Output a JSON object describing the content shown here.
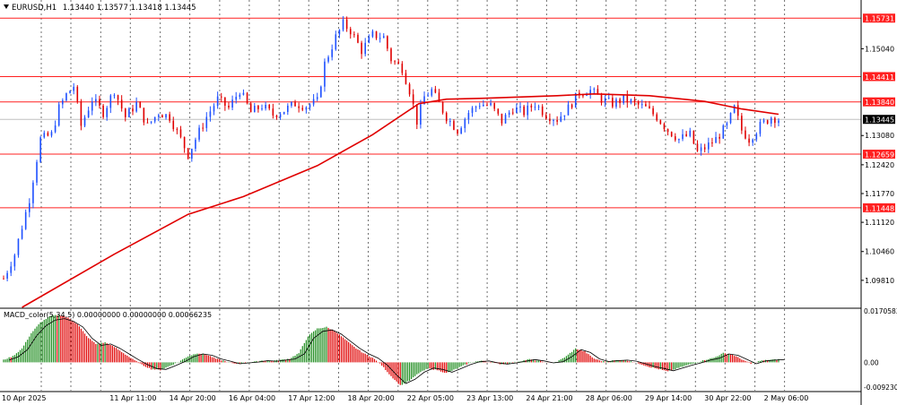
{
  "header": {
    "symbol": "EURUSD,H1",
    "ohlc": "1.13440 1.13577 1.13418 1.13445"
  },
  "indicator": {
    "label": "MACD_color(5,34,5) 0.00000000 0.00000000 0.00066235",
    "axis_labels": [
      "0.0170583",
      "0.00",
      "-0.0092300"
    ]
  },
  "x_axis_labels": [
    "10 Apr 2025",
    "11 Apr 11:00",
    "14 Apr 20:00",
    "16 Apr 04:00",
    "17 Apr 12:00",
    "18 Apr 20:00",
    "22 Apr 05:00",
    "23 Apr 13:00",
    "24 Apr 21:00",
    "28 Apr 06:00",
    "29 Apr 14:00",
    "30 Apr 22:00",
    "2 May 06:00"
  ],
  "colors": {
    "bull": "#1e8c1e",
    "bear": "#e00000",
    "level": "#ff2020",
    "ma": "#e00000",
    "grid": "#707070",
    "current_price_bg": "#000000"
  },
  "chart_data": [
    {
      "type": "candlestick",
      "name_in_header": "EURUSD,H1",
      "timeframe": "H1",
      "ylim": [
        1.092,
        1.161
      ],
      "y_ticks": [
        "1.15731",
        "1.15040",
        "1.14411",
        "1.13840",
        "1.13445",
        "1.13080",
        "1.12659",
        "1.12420",
        "1.11770",
        "1.11448",
        "1.11120",
        "1.10460",
        "1.09810"
      ],
      "horizontal_levels": [
        1.15731,
        1.14411,
        1.1384,
        1.12659,
        1.11448
      ],
      "current_price": 1.13445,
      "close_path": [
        [
          0,
          1.0985
        ],
        [
          6,
          1.104
        ],
        [
          14,
          1.1165
        ],
        [
          20,
          1.13
        ],
        [
          26,
          1.131
        ],
        [
          30,
          1.137
        ],
        [
          34,
          1.14
        ],
        [
          38,
          1.142
        ],
        [
          42,
          1.133
        ],
        [
          48,
          1.139
        ],
        [
          54,
          1.136
        ],
        [
          60,
          1.141
        ],
        [
          66,
          1.135
        ],
        [
          72,
          1.138
        ],
        [
          78,
          1.133
        ],
        [
          84,
          1.136
        ],
        [
          90,
          1.135
        ],
        [
          96,
          1.13
        ],
        [
          100,
          1.1265
        ],
        [
          104,
          1.13
        ],
        [
          110,
          1.135
        ],
        [
          116,
          1.139
        ],
        [
          122,
          1.137
        ],
        [
          128,
          1.141
        ],
        [
          134,
          1.136
        ],
        [
          140,
          1.1375
        ],
        [
          146,
          1.1355
        ],
        [
          152,
          1.1365
        ],
        [
          158,
          1.138
        ],
        [
          164,
          1.1375
        ],
        [
          170,
          1.1385
        ],
        [
          174,
          1.147
        ],
        [
          180,
          1.153
        ],
        [
          184,
          1.156
        ],
        [
          188,
          1.1545
        ],
        [
          194,
          1.15
        ],
        [
          200,
          1.1535
        ],
        [
          206,
          1.153
        ],
        [
          210,
          1.148
        ],
        [
          216,
          1.146
        ],
        [
          220,
          1.141
        ],
        [
          224,
          1.134
        ],
        [
          228,
          1.1395
        ],
        [
          232,
          1.141
        ],
        [
          236,
          1.138
        ],
        [
          240,
          1.135
        ],
        [
          246,
          1.132
        ],
        [
          252,
          1.136
        ],
        [
          258,
          1.138
        ],
        [
          264,
          1.1375
        ],
        [
          270,
          1.134
        ],
        [
          276,
          1.137
        ],
        [
          282,
          1.136
        ],
        [
          288,
          1.138
        ],
        [
          294,
          1.1355
        ],
        [
          300,
          1.1345
        ],
        [
          306,
          1.137
        ],
        [
          312,
          1.1405
        ],
        [
          318,
          1.141
        ],
        [
          324,
          1.139
        ],
        [
          330,
          1.138
        ],
        [
          336,
          1.139
        ],
        [
          342,
          1.138
        ],
        [
          348,
          1.137
        ],
        [
          354,
          1.135
        ],
        [
          360,
          1.132
        ],
        [
          366,
          1.13
        ],
        [
          372,
          1.131
        ],
        [
          376,
          1.127
        ],
        [
          380,
          1.128
        ],
        [
          386,
          1.13
        ],
        [
          392,
          1.133
        ],
        [
          396,
          1.137
        ],
        [
          400,
          1.132
        ],
        [
          404,
          1.13
        ],
        [
          410,
          1.133
        ],
        [
          416,
          1.135
        ],
        [
          420,
          1.1345
        ]
      ],
      "moving_average": [
        [
          10,
          1.092
        ],
        [
          60,
          1.104
        ],
        [
          100,
          1.113
        ],
        [
          130,
          1.117
        ],
        [
          170,
          1.124
        ],
        [
          200,
          1.131
        ],
        [
          225,
          1.138
        ],
        [
          240,
          1.139
        ],
        [
          260,
          1.1392
        ],
        [
          300,
          1.1398
        ],
        [
          320,
          1.1402
        ],
        [
          350,
          1.1398
        ],
        [
          380,
          1.1385
        ],
        [
          400,
          1.1368
        ],
        [
          420,
          1.1356
        ]
      ]
    },
    {
      "type": "histogram",
      "name_in_label": "MACD_color(5,34,5)",
      "ylim": [
        -0.00923,
        0.0170583
      ],
      "values": [
        [
          0,
          0.0008
        ],
        [
          5,
          0.002
        ],
        [
          10,
          0.0045
        ],
        [
          15,
          0.0095
        ],
        [
          20,
          0.013
        ],
        [
          25,
          0.015
        ],
        [
          30,
          0.0155
        ],
        [
          35,
          0.0145
        ],
        [
          40,
          0.0125
        ],
        [
          45,
          0.0085
        ],
        [
          50,
          0.006
        ],
        [
          55,
          0.0065
        ],
        [
          60,
          0.005
        ],
        [
          65,
          0.003
        ],
        [
          70,
          0.001
        ],
        [
          75,
          -0.0008
        ],
        [
          80,
          -0.0022
        ],
        [
          85,
          -0.0025
        ],
        [
          90,
          -0.0012
        ],
        [
          95,
          0.0002
        ],
        [
          100,
          0.002
        ],
        [
          105,
          0.003
        ],
        [
          110,
          0.0025
        ],
        [
          115,
          0.0012
        ],
        [
          120,
          0.0004
        ],
        [
          125,
          -0.0005
        ],
        [
          130,
          -0.0002
        ],
        [
          135,
          0.0001
        ],
        [
          140,
          0.0006
        ],
        [
          145,
          0.0004
        ],
        [
          150,
          0.0008
        ],
        [
          155,
          0.0012
        ],
        [
          160,
          0.003
        ],
        [
          165,
          0.0085
        ],
        [
          170,
          0.011
        ],
        [
          175,
          0.0115
        ],
        [
          180,
          0.01
        ],
        [
          185,
          0.0075
        ],
        [
          190,
          0.005
        ],
        [
          195,
          0.003
        ],
        [
          200,
          0.0015
        ],
        [
          205,
          -0.001
        ],
        [
          210,
          -0.0045
        ],
        [
          215,
          -0.0075
        ],
        [
          220,
          -0.006
        ],
        [
          225,
          -0.0035
        ],
        [
          230,
          -0.002
        ],
        [
          235,
          -0.0025
        ],
        [
          240,
          -0.0035
        ],
        [
          245,
          -0.0022
        ],
        [
          250,
          -0.0008
        ],
        [
          255,
          0.0002
        ],
        [
          260,
          0.0005
        ],
        [
          265,
          -0.0002
        ],
        [
          270,
          -0.0006
        ],
        [
          275,
          -0.0002
        ],
        [
          280,
          0.0004
        ],
        [
          285,
          0.001
        ],
        [
          290,
          0.0005
        ],
        [
          295,
          -0.0002
        ],
        [
          300,
          0.0002
        ],
        [
          305,
          0.002
        ],
        [
          310,
          0.0045
        ],
        [
          315,
          0.0035
        ],
        [
          320,
          0.0012
        ],
        [
          325,
          0.0003
        ],
        [
          330,
          0.0006
        ],
        [
          335,
          0.0008
        ],
        [
          340,
          0.0004
        ],
        [
          345,
          -0.0005
        ],
        [
          350,
          -0.0015
        ],
        [
          355,
          -0.0022
        ],
        [
          360,
          -0.003
        ],
        [
          365,
          -0.002
        ],
        [
          370,
          -0.001
        ],
        [
          375,
          -0.0002
        ],
        [
          380,
          0.0008
        ],
        [
          385,
          0.0015
        ],
        [
          390,
          0.003
        ],
        [
          395,
          0.0025
        ],
        [
          400,
          0.001
        ],
        [
          405,
          -0.0005
        ],
        [
          410,
          0.0005
        ],
        [
          415,
          0.0008
        ],
        [
          420,
          0.001
        ]
      ]
    }
  ]
}
